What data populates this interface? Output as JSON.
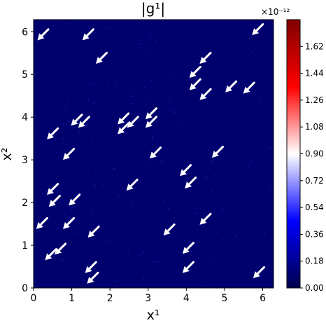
{
  "chart_data": {
    "type": "heatmap",
    "title": "|g¹|",
    "xlabel": "x¹",
    "ylabel": "x²",
    "xlim": [
      0,
      6.2832
    ],
    "ylim": [
      0,
      6.2832
    ],
    "x_ticks": [
      0,
      1,
      2,
      3,
      4,
      5,
      6
    ],
    "y_ticks": [
      0,
      1,
      2,
      3,
      4,
      5,
      6
    ],
    "field_value_range": [
      0,
      1.8e-12
    ],
    "colormap": "seismic",
    "field_background_color": "#00006e",
    "colorbar": {
      "multiplier_label": "×10⁻¹²",
      "range": [
        0,
        1.8
      ],
      "ticks": [
        "0.00",
        "0.18",
        "0.36",
        "0.54",
        "0.72",
        "0.90",
        "1.08",
        "1.26",
        "1.44",
        "1.62"
      ]
    },
    "quiver": {
      "color": "#ffffff",
      "direction": "toward lower-left (-x, -y)",
      "arrows": [
        {
          "x": 0.1,
          "y": 5.8
        },
        {
          "x": 1.28,
          "y": 5.8
        },
        {
          "x": 1.63,
          "y": 5.25
        },
        {
          "x": 2.2,
          "y": 3.83
        },
        {
          "x": 2.2,
          "y": 3.6
        },
        {
          "x": 2.45,
          "y": 3.75
        },
        {
          "x": 2.93,
          "y": 3.95
        },
        {
          "x": 2.93,
          "y": 3.75
        },
        {
          "x": 3.04,
          "y": 3.03
        },
        {
          "x": 2.43,
          "y": 2.28
        },
        {
          "x": 3.83,
          "y": 2.62
        },
        {
          "x": 3.96,
          "y": 2.33
        },
        {
          "x": 4.67,
          "y": 3.05
        },
        {
          "x": 4.35,
          "y": 5.25
        },
        {
          "x": 4.08,
          "y": 4.92
        },
        {
          "x": 4.08,
          "y": 4.63
        },
        {
          "x": 4.35,
          "y": 4.4
        },
        {
          "x": 5.02,
          "y": 4.58
        },
        {
          "x": 5.49,
          "y": 4.55
        },
        {
          "x": 5.72,
          "y": 5.92
        },
        {
          "x": 0.35,
          "y": 3.48
        },
        {
          "x": 0.98,
          "y": 3.8
        },
        {
          "x": 1.17,
          "y": 3.75
        },
        {
          "x": 0.77,
          "y": 3.0
        },
        {
          "x": 0.35,
          "y": 2.18
        },
        {
          "x": 0.4,
          "y": 1.9
        },
        {
          "x": 0.92,
          "y": 1.93
        },
        {
          "x": 0.07,
          "y": 1.38
        },
        {
          "x": 0.77,
          "y": 1.38
        },
        {
          "x": 1.42,
          "y": 1.18
        },
        {
          "x": 0.3,
          "y": 0.65
        },
        {
          "x": 0.55,
          "y": 0.78
        },
        {
          "x": 3.4,
          "y": 1.23
        },
        {
          "x": 4.35,
          "y": 1.48
        },
        {
          "x": 3.9,
          "y": 0.8
        },
        {
          "x": 3.9,
          "y": 0.35
        },
        {
          "x": 1.35,
          "y": 0.35
        },
        {
          "x": 1.4,
          "y": 0.1
        },
        {
          "x": 5.75,
          "y": 0.23
        }
      ]
    }
  }
}
